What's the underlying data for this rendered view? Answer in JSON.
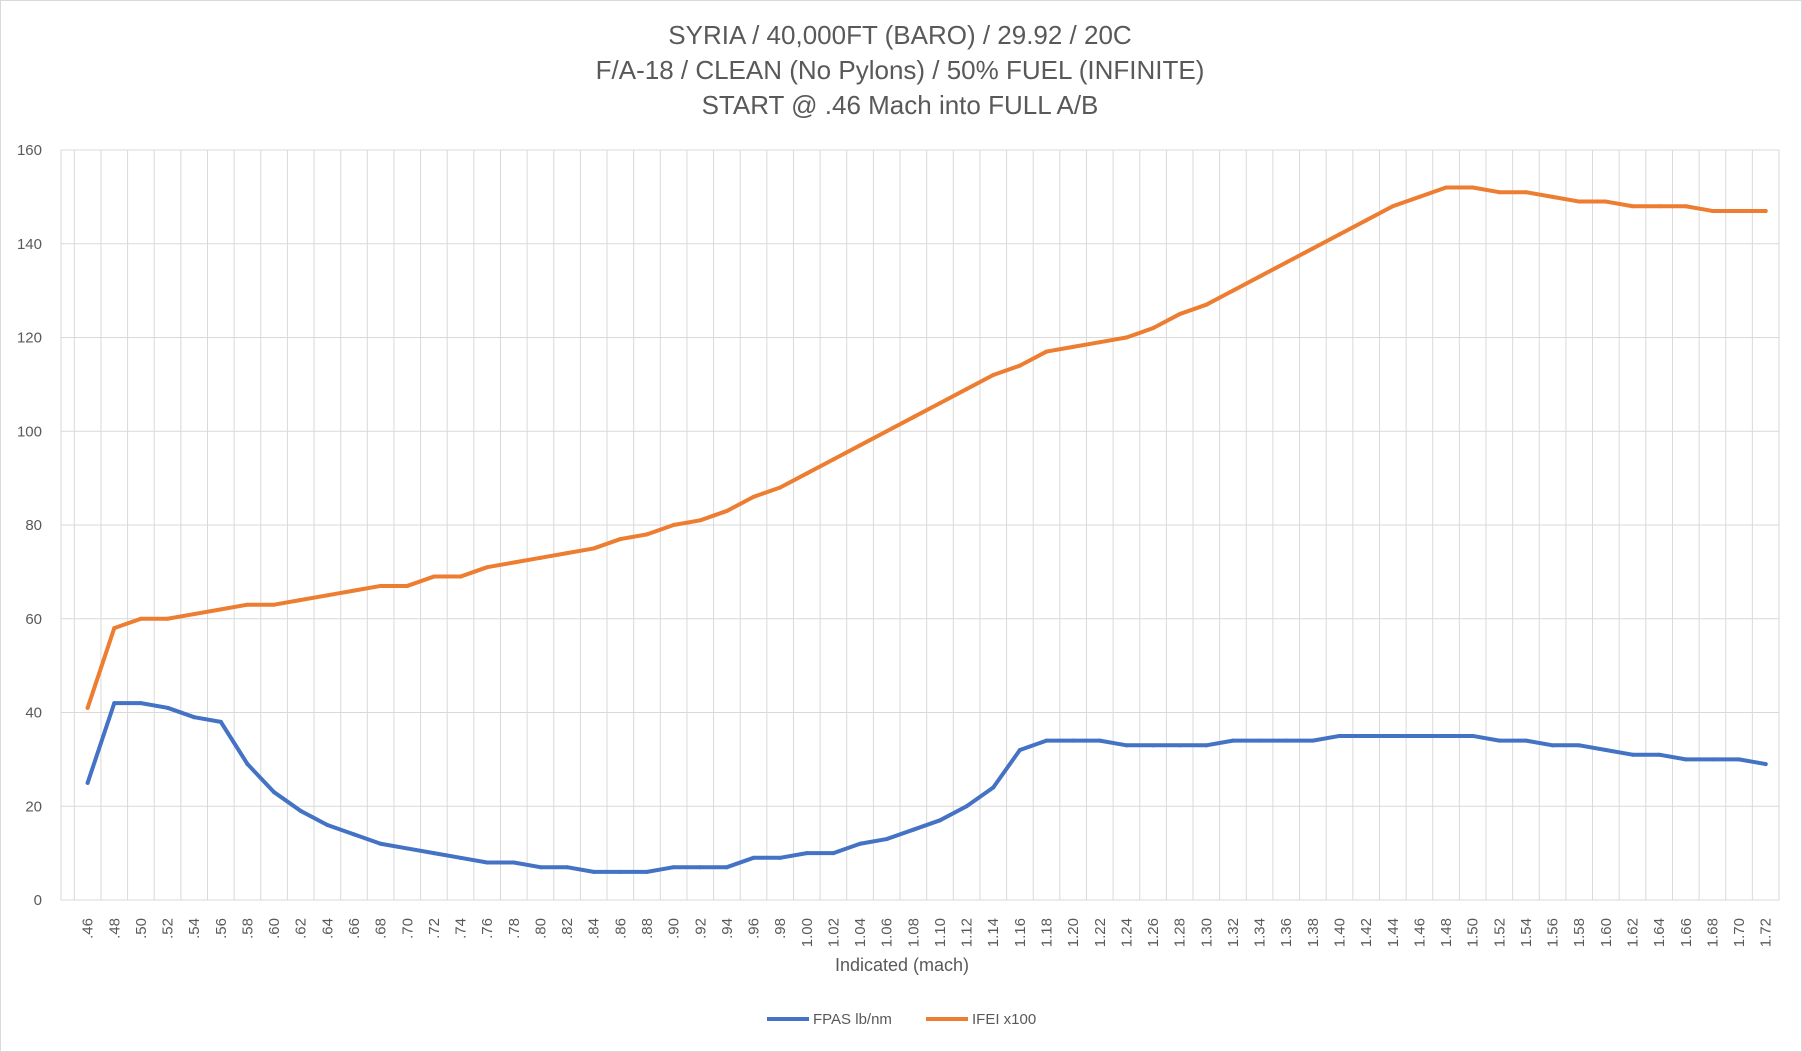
{
  "chart_data": {
    "type": "line",
    "title": [
      "SYRIA / 40,000FT (BARO) / 29.92 / 20C",
      "F/A-18 / CLEAN (No Pylons) / 50% FUEL (INFINITE)",
      "START @ .46 Mach into FULL A/B"
    ],
    "xlabel": "Indicated (mach)",
    "ylabel": "",
    "ylim": [
      0,
      160
    ],
    "yticks": [
      0,
      20,
      40,
      60,
      80,
      100,
      120,
      140,
      160
    ],
    "grid": true,
    "legend_position": "bottom",
    "categories": [
      ".46",
      ".48",
      ".50",
      ".52",
      ".54",
      ".56",
      ".58",
      ".60",
      ".62",
      ".64",
      ".66",
      ".68",
      ".70",
      ".72",
      ".74",
      ".76",
      ".78",
      ".80",
      ".82",
      ".84",
      ".86",
      ".88",
      ".90",
      ".92",
      ".94",
      ".96",
      ".98",
      "1.00",
      "1.02",
      "1.04",
      "1.06",
      "1.08",
      "1.10",
      "1.12",
      "1.14",
      "1.16",
      "1.18",
      "1.20",
      "1.22",
      "1.24",
      "1.26",
      "1.28",
      "1.30",
      "1.32",
      "1.34",
      "1.36",
      "1.38",
      "1.40",
      "1.42",
      "1.44",
      "1.46",
      "1.48",
      "1.50",
      "1.52",
      "1.54",
      "1.56",
      "1.58",
      "1.60",
      "1.62",
      "1.64",
      "1.66",
      "1.68",
      "1.70",
      "1.72"
    ],
    "series": [
      {
        "name": "FPAS lb/nm",
        "color": "#4472c4",
        "values": [
          25,
          42,
          42,
          41,
          39,
          38,
          29,
          23,
          19,
          16,
          14,
          12,
          11,
          10,
          9,
          8,
          8,
          7,
          7,
          6,
          6,
          6,
          7,
          7,
          7,
          9,
          9,
          10,
          10,
          12,
          13,
          15,
          17,
          20,
          24,
          32,
          34,
          34,
          34,
          33,
          33,
          33,
          33,
          34,
          34,
          34,
          34,
          35,
          35,
          35,
          35,
          35,
          35,
          34,
          34,
          33,
          33,
          32,
          31,
          31,
          30,
          30,
          30,
          29
        ]
      },
      {
        "name": "IFEI x100",
        "color": "#ed7d31",
        "values": [
          41,
          58,
          60,
          60,
          61,
          62,
          63,
          63,
          64,
          65,
          66,
          67,
          67,
          69,
          69,
          71,
          72,
          73,
          74,
          75,
          77,
          78,
          80,
          81,
          83,
          86,
          88,
          91,
          94,
          97,
          100,
          103,
          106,
          109,
          112,
          114,
          117,
          118,
          119,
          120,
          122,
          125,
          127,
          130,
          133,
          136,
          139,
          142,
          145,
          148,
          150,
          152,
          152,
          151,
          151,
          150,
          149,
          149,
          148,
          148,
          148,
          147,
          147,
          147
        ]
      }
    ]
  }
}
